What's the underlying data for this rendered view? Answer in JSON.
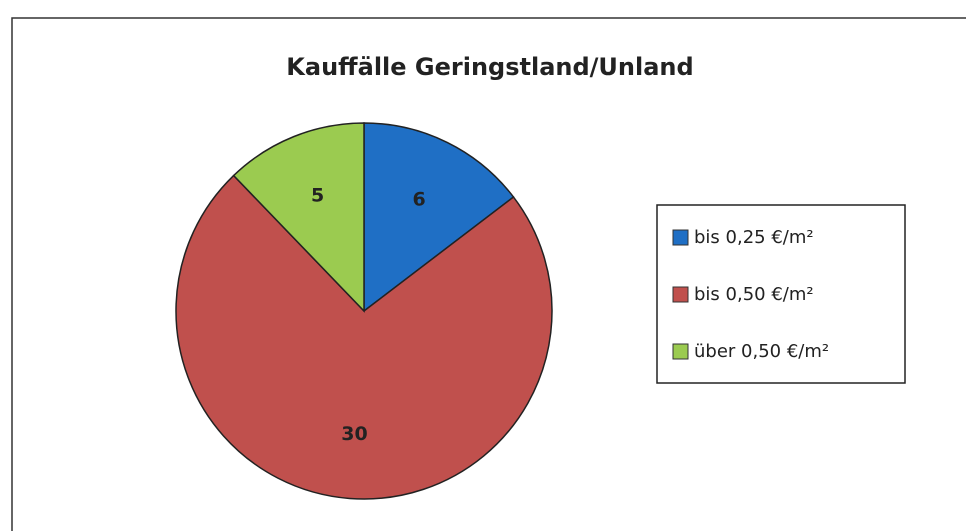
{
  "chart_data": {
    "type": "pie",
    "title": "Kauffälle Geringstland/Unland",
    "categories": [
      "bis 0,25 €/m²",
      "bis 0,50 €/m²",
      "über 0,50 €/m²"
    ],
    "values": [
      6,
      30,
      5
    ],
    "colors": [
      "#1f6fc5",
      "#c0504d",
      "#9bcb50"
    ],
    "legend": "right"
  }
}
